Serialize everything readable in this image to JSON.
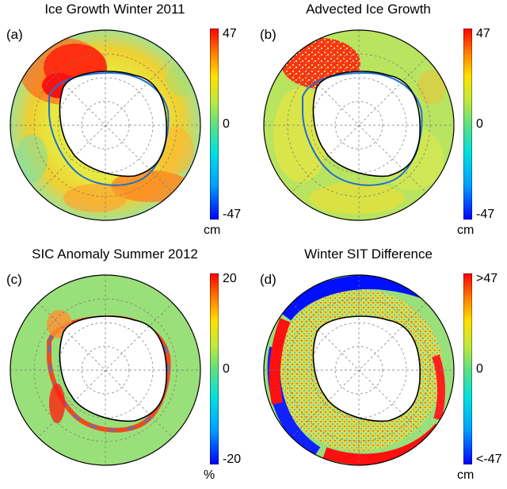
{
  "panels": [
    {
      "title": "Ice Growth Winter 2011",
      "label": "(a)",
      "ticks": {
        "top": "47",
        "mid": "0",
        "bottom": "-47"
      },
      "unit": "cm"
    },
    {
      "title": "Advected Ice Growth",
      "label": "(b)",
      "ticks": {
        "top": "47",
        "mid": "0",
        "bottom": "-47"
      },
      "unit": "cm"
    },
    {
      "title": "SIC Anomaly Summer 2012",
      "label": "(c)",
      "ticks": {
        "top": "20",
        "mid": "0",
        "bottom": "-20"
      },
      "unit": "%"
    },
    {
      "title": "Winter SIT Difference",
      "label": "(d)",
      "ticks": {
        "top": ">47",
        "mid": "0",
        "bottom": "<-47"
      },
      "unit": "cm"
    }
  ],
  "colors": {
    "colormap": [
      "#0000ff",
      "#00a0ff",
      "#00e0e0",
      "#60e080",
      "#c0e840",
      "#ffe000",
      "#ff8000",
      "#ff0000",
      "#d00000"
    ],
    "background_neutral": "#9ae07a",
    "land": "#ffffff",
    "coastline": "#000000",
    "ice_edge": "#1f6fd0"
  }
}
